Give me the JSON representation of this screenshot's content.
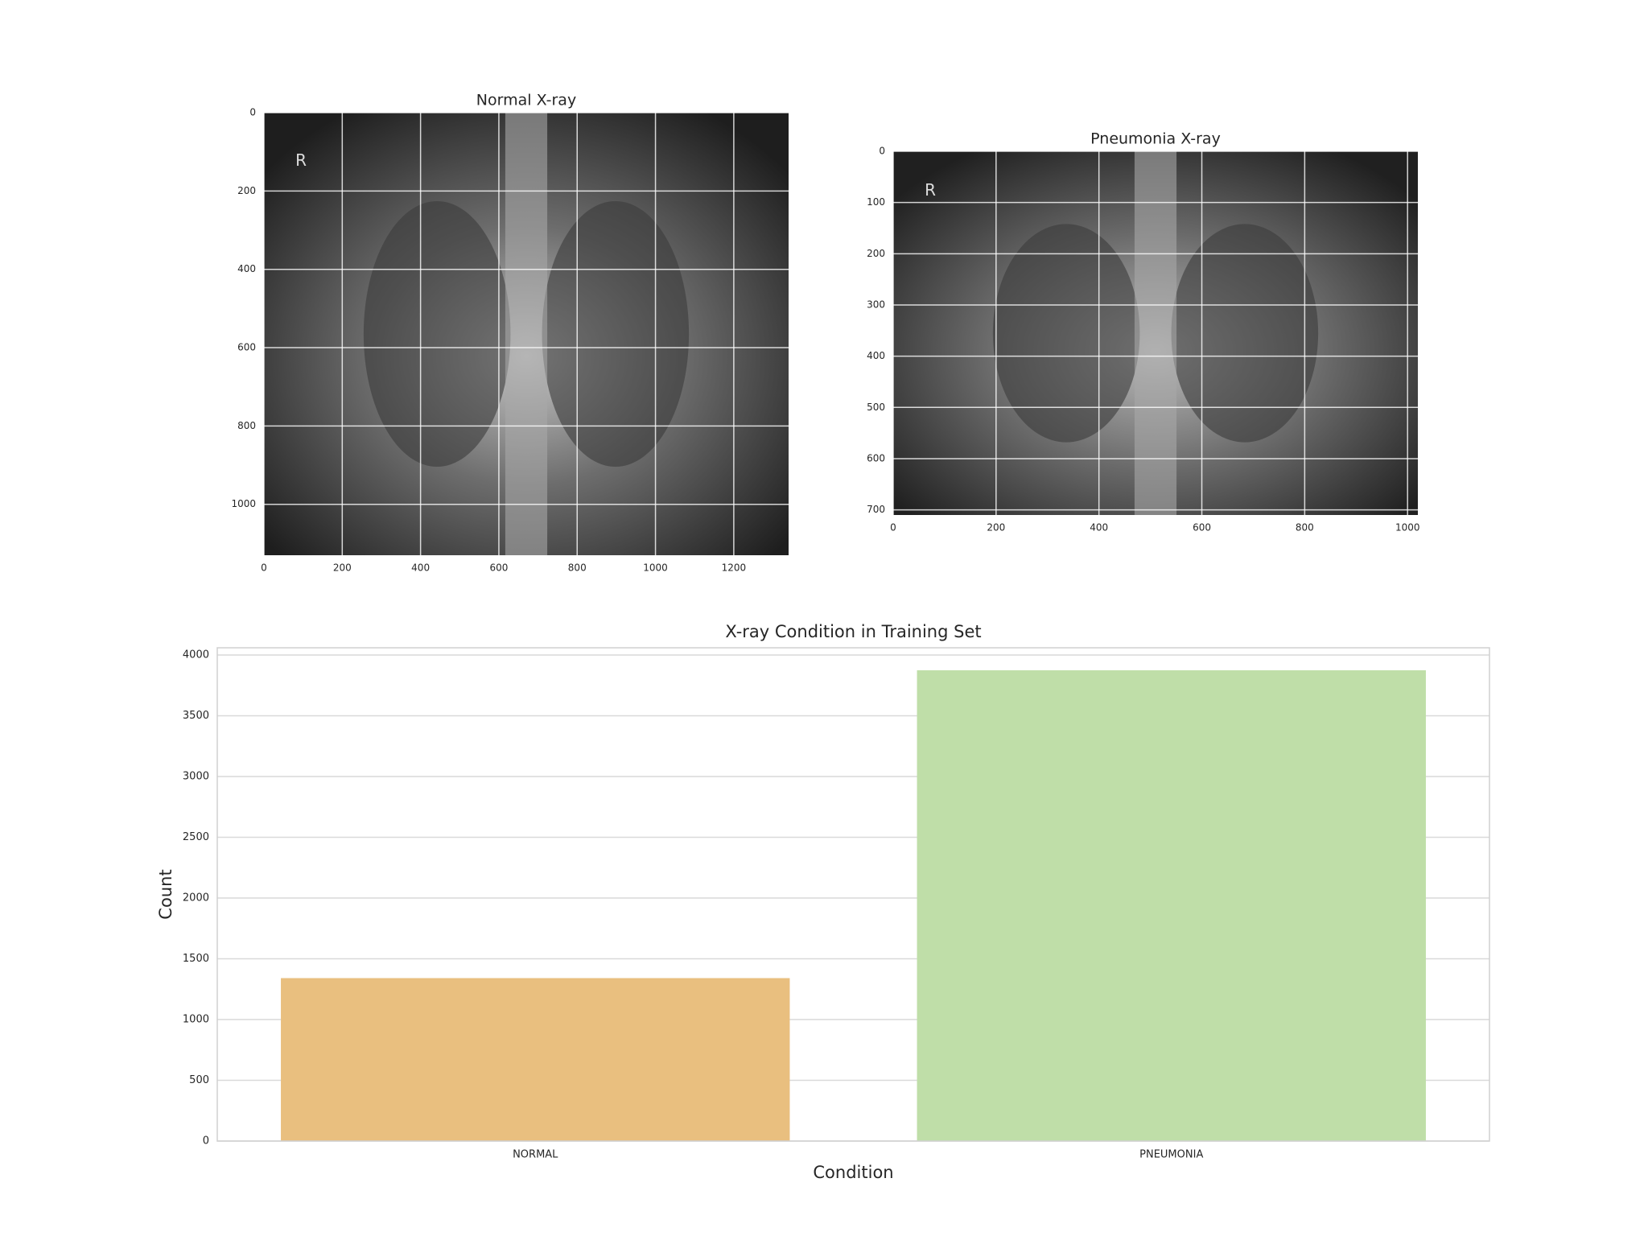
{
  "chart_data": [
    {
      "type": "image",
      "title": "Normal X-ray",
      "annotation": "R",
      "xlim": [
        0,
        1340
      ],
      "ylim": [
        1130,
        0
      ],
      "xticks": [
        0,
        200,
        400,
        600,
        800,
        1000,
        1200
      ],
      "yticks": [
        0,
        200,
        400,
        600,
        800,
        1000
      ],
      "grid": true
    },
    {
      "type": "image",
      "title": "Pneumonia X-ray",
      "annotation": "R",
      "xlim": [
        0,
        1020
      ],
      "ylim": [
        710,
        0
      ],
      "xticks": [
        0,
        200,
        400,
        600,
        800,
        1000
      ],
      "yticks": [
        0,
        100,
        200,
        300,
        400,
        500,
        600,
        700
      ],
      "grid": true
    },
    {
      "type": "bar",
      "title": "X-ray Condition in Training Set",
      "xlabel": "Condition",
      "ylabel": "Count",
      "categories": [
        "NORMAL",
        "PNEUMONIA"
      ],
      "values": [
        1341,
        3875
      ],
      "colors": [
        "#e9bf7f",
        "#bfdea8"
      ],
      "ylim": [
        0,
        4060
      ],
      "yticks": [
        0,
        500,
        1000,
        1500,
        2000,
        2500,
        3000,
        3500,
        4000
      ],
      "grid": true
    }
  ]
}
